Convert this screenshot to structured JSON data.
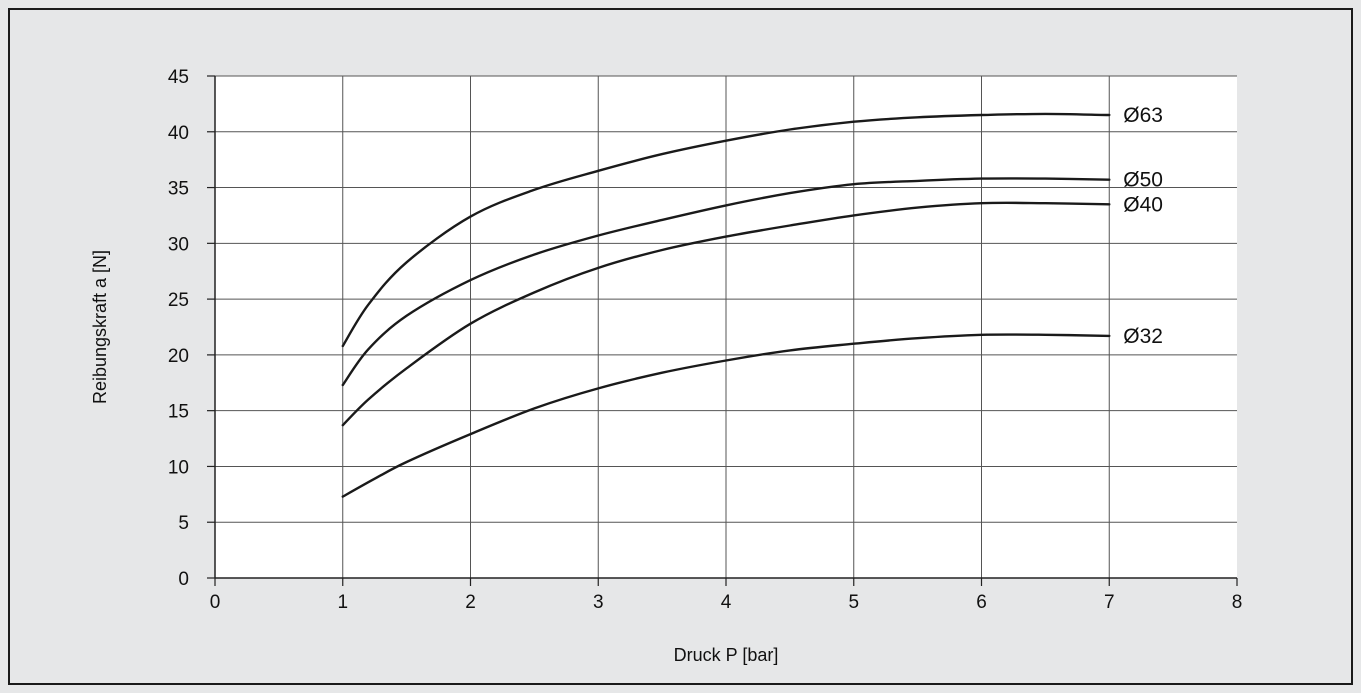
{
  "colors": {
    "background": "#e6e7e8",
    "plot_area": "#ffffff",
    "line": "#1a1a1a"
  },
  "chart_data": {
    "type": "line",
    "xlabel": "Druck P [bar]",
    "ylabel": "Reibungskraft a [N]",
    "xlim": [
      0,
      8
    ],
    "ylim": [
      0,
      45
    ],
    "xticks": [
      0,
      1,
      2,
      3,
      4,
      5,
      6,
      7,
      8
    ],
    "yticks": [
      0,
      5,
      10,
      15,
      20,
      25,
      30,
      35,
      40,
      45
    ],
    "grid": true,
    "series": [
      {
        "name": "Ø63",
        "x": [
          1,
          1.2,
          1.5,
          2,
          2.5,
          3,
          3.5,
          4,
          4.5,
          5,
          5.5,
          6,
          6.5,
          7
        ],
        "values": [
          20.8,
          24.5,
          28.3,
          32.4,
          34.8,
          36.5,
          38.0,
          39.2,
          40.2,
          40.9,
          41.3,
          41.5,
          41.6,
          41.5
        ]
      },
      {
        "name": "Ø50",
        "x": [
          1,
          1.2,
          1.5,
          2,
          2.5,
          3,
          3.5,
          4,
          4.5,
          5,
          5.5,
          6,
          6.5,
          7
        ],
        "values": [
          17.3,
          20.5,
          23.5,
          26.7,
          29.0,
          30.7,
          32.1,
          33.4,
          34.5,
          35.3,
          35.6,
          35.8,
          35.8,
          35.7
        ]
      },
      {
        "name": "Ø40",
        "x": [
          1,
          1.2,
          1.5,
          2,
          2.5,
          3,
          3.5,
          4,
          4.5,
          5,
          5.5,
          6,
          6.5,
          7
        ],
        "values": [
          13.7,
          16.0,
          18.8,
          22.8,
          25.6,
          27.8,
          29.4,
          30.6,
          31.6,
          32.5,
          33.2,
          33.6,
          33.6,
          33.5
        ]
      },
      {
        "name": "Ø32",
        "x": [
          1,
          1.25,
          1.5,
          2,
          2.5,
          3,
          3.5,
          4,
          4.5,
          5,
          5.5,
          6,
          6.5,
          7
        ],
        "values": [
          7.3,
          8.9,
          10.4,
          12.9,
          15.2,
          17.0,
          18.4,
          19.5,
          20.4,
          21.0,
          21.5,
          21.8,
          21.8,
          21.7
        ]
      }
    ]
  }
}
